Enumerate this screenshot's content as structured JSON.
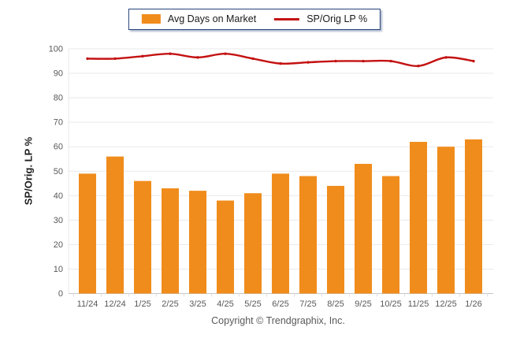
{
  "legend": {
    "items": [
      {
        "label": "Avg Days on Market",
        "type": "bar"
      },
      {
        "label": "SP/Orig LP %",
        "type": "line"
      }
    ]
  },
  "footer": {
    "text": "Copyright © Trendgraphix, Inc."
  },
  "colors": {
    "bar": "#F08C1C",
    "line": "#C41212",
    "legend_border": "#25427A",
    "grid": "#E9E9E9",
    "axis_line": "#C6C6C6",
    "axis_text": "#595959"
  },
  "chart_data": {
    "type": "bar+line",
    "title": "",
    "xlabel": "",
    "ylabel": "SP/Orig. LP %",
    "categories": [
      "11/24",
      "12/24",
      "1/25",
      "2/25",
      "3/25",
      "4/25",
      "5/25",
      "6/25",
      "7/25",
      "8/25",
      "9/25",
      "10/25",
      "11/25",
      "12/25",
      "1/26"
    ],
    "series": [
      {
        "name": "Avg Days on Market",
        "type": "bar",
        "color": "#F08C1C",
        "values": [
          49,
          56,
          46,
          43,
          42,
          38,
          41,
          49,
          48,
          44,
          53,
          48,
          62,
          60,
          63
        ]
      },
      {
        "name": "SP/Orig LP %",
        "type": "line",
        "color": "#C41212",
        "values": [
          96,
          96,
          97,
          98,
          96.5,
          98,
          96,
          94,
          94.5,
          95,
          95,
          95,
          93,
          96.5,
          95
        ]
      }
    ],
    "ylim": [
      0,
      100
    ],
    "yticks": [
      0,
      10,
      20,
      30,
      40,
      50,
      60,
      70,
      80,
      90,
      100
    ],
    "grid": true,
    "legend_position": "top-center"
  }
}
